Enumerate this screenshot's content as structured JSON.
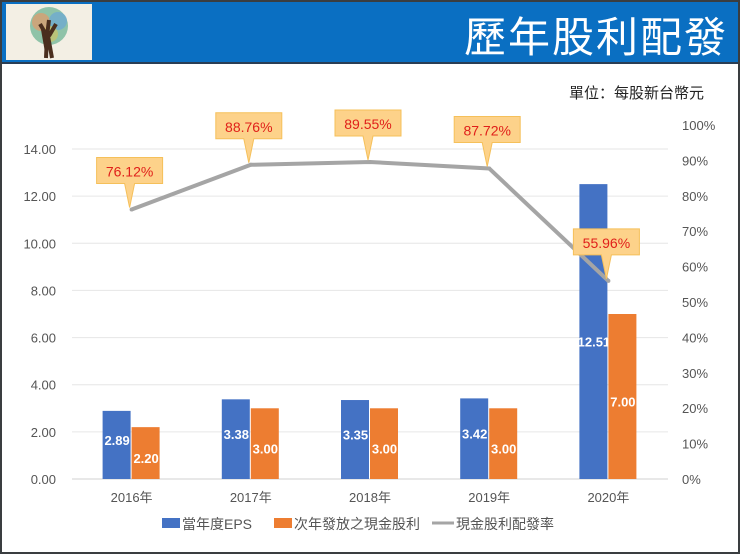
{
  "header": {
    "title": "歷年股利配發"
  },
  "unit_label": "單位：每股新台幣元",
  "chart_data": {
    "type": "bar",
    "categories": [
      "2016年",
      "2017年",
      "2018年",
      "2019年",
      "2020年"
    ],
    "series": [
      {
        "name": "當年度EPS",
        "type": "bar",
        "axis": "left",
        "color": "#4472c4",
        "values": [
          2.89,
          3.38,
          3.35,
          3.42,
          12.51
        ],
        "labels": [
          "2.89",
          "3.38",
          "3.35",
          "3.42",
          "12.51"
        ]
      },
      {
        "name": "次年發放之現金股利",
        "type": "bar",
        "axis": "left",
        "color": "#ed7d31",
        "values": [
          2.2,
          3.0,
          3.0,
          3.0,
          7.0
        ],
        "labels": [
          "2.20",
          "3.00",
          "3.00",
          "3.00",
          "7.00"
        ]
      },
      {
        "name": "現金股利配發率",
        "type": "line",
        "axis": "right",
        "color": "#a5a5a5",
        "values": [
          76.12,
          88.76,
          89.55,
          87.72,
          55.96
        ],
        "labels": [
          "76.12%",
          "88.76%",
          "89.55%",
          "87.72%",
          "55.96%"
        ]
      }
    ],
    "yleft": {
      "lim": [
        0,
        14
      ],
      "ticks": [
        "0.00",
        "2.00",
        "4.00",
        "6.00",
        "8.00",
        "10.00",
        "12.00",
        "14.00"
      ]
    },
    "yright": {
      "lim": [
        0,
        100
      ],
      "ticks": [
        "0%",
        "10%",
        "20%",
        "30%",
        "40%",
        "50%",
        "60%",
        "70%",
        "80%",
        "90%",
        "100%"
      ]
    },
    "grid": true,
    "legend": "bottom"
  }
}
